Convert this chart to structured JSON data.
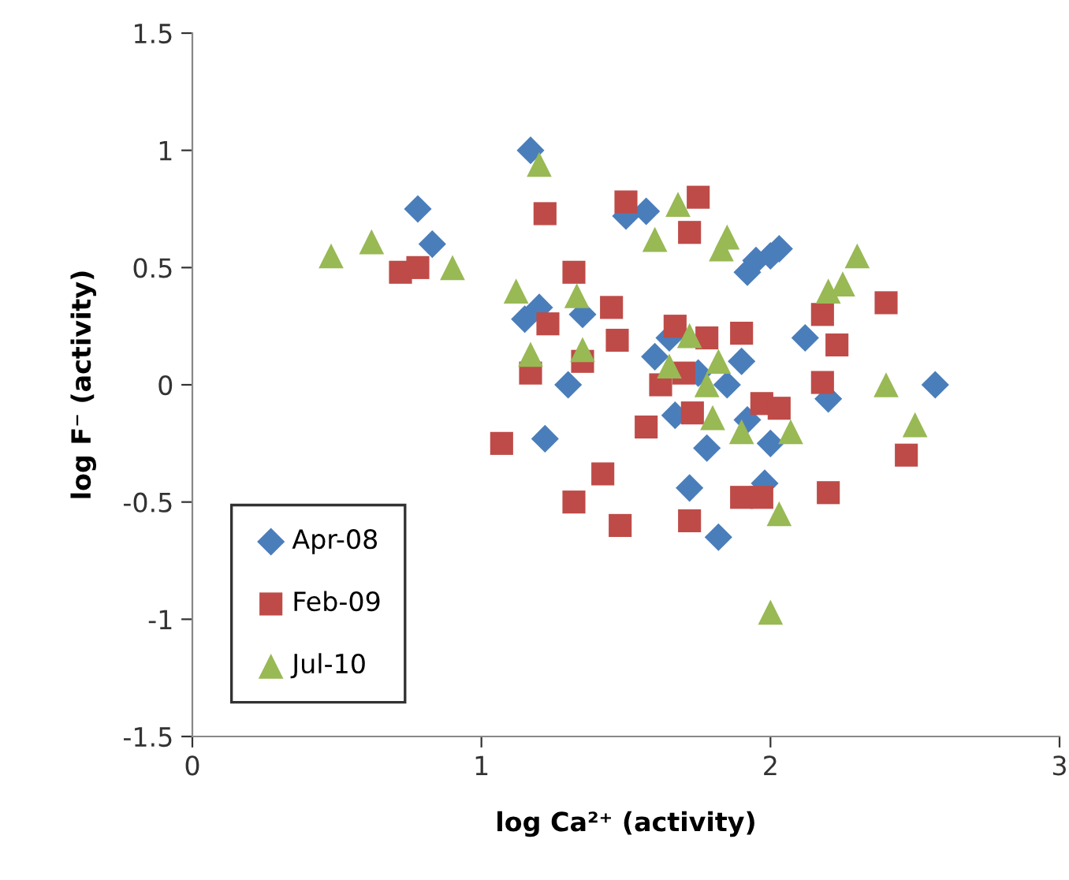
{
  "chart_data": {
    "type": "scatter",
    "xlabel": "log Ca²⁺ (activity)",
    "ylabel": "log F⁻ (activity)",
    "xlim": [
      0,
      3
    ],
    "ylim": [
      -1.5,
      1.5
    ],
    "xticks": [
      0,
      1,
      2,
      3
    ],
    "yticks": [
      -1.5,
      -1,
      -0.5,
      0,
      0.5,
      1,
      1.5
    ],
    "grid": false,
    "legend": "bottom left",
    "series": [
      {
        "name": "Apr-08",
        "color": "#4a7ebb",
        "marker": "diamond",
        "x": [
          0.78,
          0.83,
          1.17,
          1.15,
          1.2,
          1.22,
          1.3,
          1.35,
          1.5,
          1.57,
          1.6,
          1.65,
          1.67,
          1.72,
          1.78,
          1.82,
          1.85,
          1.9,
          1.92,
          1.95,
          2.0,
          2.03,
          1.92,
          1.98,
          2.0,
          2.12,
          2.2,
          2.57,
          1.75
        ],
        "values": [
          0.75,
          0.6,
          1.0,
          0.28,
          0.33,
          -0.23,
          0.0,
          0.3,
          0.72,
          0.74,
          0.12,
          0.2,
          -0.13,
          -0.44,
          -0.27,
          -0.65,
          0.0,
          0.1,
          0.48,
          0.53,
          0.55,
          0.58,
          -0.15,
          -0.42,
          -0.25,
          0.2,
          -0.06,
          0.0,
          0.05
        ]
      },
      {
        "name": "Feb-09",
        "color": "#be4b48",
        "marker": "square",
        "x": [
          0.72,
          0.78,
          1.07,
          1.17,
          1.22,
          1.23,
          1.32,
          1.32,
          1.35,
          1.45,
          1.47,
          1.48,
          1.5,
          1.57,
          1.62,
          1.67,
          1.7,
          1.72,
          1.75,
          1.73,
          1.72,
          1.78,
          1.9,
          1.9,
          1.97,
          1.97,
          2.03,
          2.18,
          2.18,
          2.2,
          2.23,
          2.4,
          2.47,
          1.42
        ],
        "values": [
          0.48,
          0.5,
          -0.25,
          0.05,
          0.73,
          0.26,
          0.48,
          -0.5,
          0.1,
          0.33,
          0.19,
          -0.6,
          0.78,
          -0.18,
          0.0,
          0.25,
          0.05,
          0.65,
          0.8,
          -0.12,
          -0.58,
          0.2,
          0.22,
          -0.48,
          -0.48,
          -0.08,
          -0.1,
          0.3,
          0.01,
          -0.46,
          0.17,
          0.35,
          -0.3,
          -0.38
        ]
      },
      {
        "name": "Jul-10",
        "color": "#98b954",
        "marker": "triangle",
        "x": [
          0.48,
          0.62,
          0.9,
          1.12,
          1.17,
          1.2,
          1.33,
          1.35,
          1.6,
          1.65,
          1.68,
          1.72,
          1.78,
          1.8,
          1.83,
          1.85,
          1.82,
          1.9,
          2.03,
          2.0,
          2.07,
          2.2,
          2.25,
          2.3,
          2.4,
          2.5
        ],
        "values": [
          0.55,
          0.61,
          0.5,
          0.4,
          0.13,
          0.94,
          0.38,
          0.15,
          0.62,
          0.08,
          0.77,
          0.21,
          0.0,
          -0.14,
          0.58,
          0.63,
          0.1,
          -0.2,
          -0.55,
          -0.97,
          -0.2,
          0.4,
          0.43,
          0.55,
          0.0,
          -0.17
        ]
      }
    ]
  }
}
